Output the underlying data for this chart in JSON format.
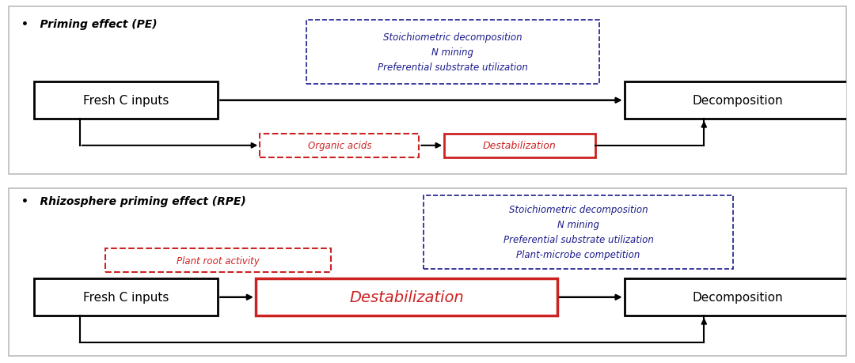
{
  "bg_color": "#ffffff",
  "black": "#000000",
  "blue": "#1a1a8c",
  "red": "#cc2222",
  "panel_border": "#bbbbbb",
  "pe_title": "•   Priming effect (PE)",
  "rpe_title": "•   Rhizosphere priming effect (RPE)",
  "pe_blue_lines": [
    "Stoichiometric decomposition",
    "N mining",
    "Preferential substrate utilization"
  ],
  "rpe_blue_lines": [
    "Stoichiometric decomposition",
    "N mining",
    "Preferential substrate utilization",
    "Plant-microbe competition"
  ],
  "pe_fresh": "Fresh C inputs",
  "pe_decomp": "Decomposition",
  "pe_organic": "Organic acids",
  "pe_destab": "Destabilization",
  "rpe_fresh": "Fresh C inputs",
  "rpe_decomp": "Decomposition",
  "rpe_plant": "Plant root activity",
  "rpe_destab": "Destabilization"
}
